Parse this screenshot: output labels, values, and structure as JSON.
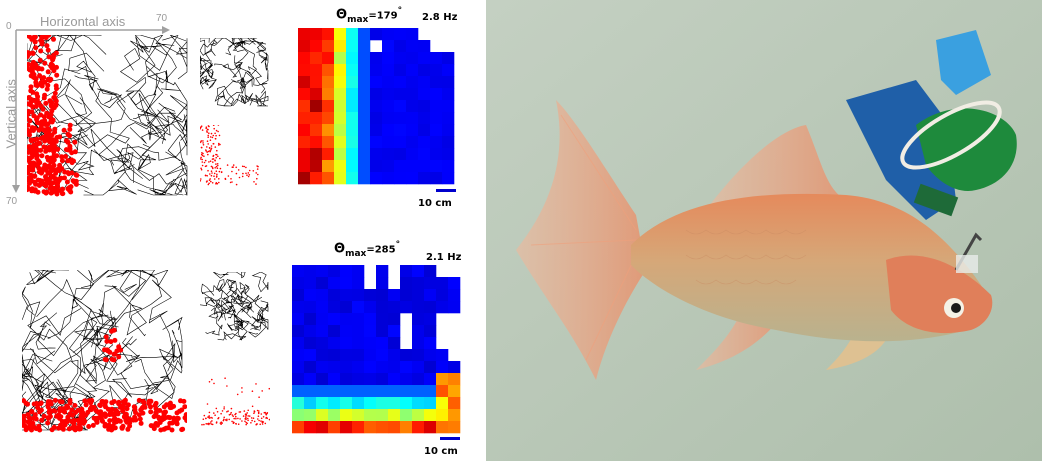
{
  "axes": {
    "horizontal_label": "Horizontal axis",
    "vertical_label": "Vertical axis",
    "origin_tick": "0",
    "x_max_tick": "70",
    "y_max_tick": "70"
  },
  "panel_top": {
    "theta_symbol": "Θ",
    "theta_sub": "max",
    "theta_value": "=179",
    "theta_unit": "°",
    "rate": "2.8 Hz",
    "scale": "10 cm"
  },
  "panel_bottom": {
    "theta_symbol": "Θ",
    "theta_sub": "max",
    "theta_value": "=285",
    "theta_unit": "°",
    "rate": "2.1 Hz",
    "scale": "10 cm"
  },
  "colors": {
    "trajectory": "#000000",
    "spikes": "#ff0000",
    "water": "#b8c6b4",
    "scale_bar": "#0000cc"
  },
  "photo_caption_icon": "goldfish-with-recording-device"
}
